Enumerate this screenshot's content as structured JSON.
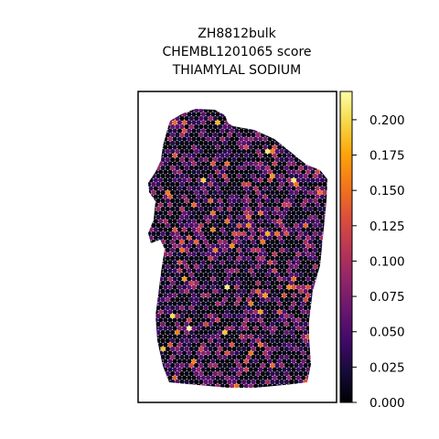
{
  "chart_data": {
    "type": "scatter",
    "title_lines": [
      "ZH8812bulk",
      "CHEMBL1201065 score",
      "THIAMYLAL SODIUM"
    ],
    "colormap": "inferno",
    "colorbar": {
      "range": [
        0.0,
        0.22
      ],
      "ticks": [
        0.0,
        0.025,
        0.05,
        0.075,
        0.1,
        0.125,
        0.15,
        0.175,
        0.2
      ],
      "tick_labels": [
        "0.000",
        "0.025",
        "0.050",
        "0.075",
        "0.100",
        "0.125",
        "0.150",
        "0.175",
        "0.200"
      ]
    },
    "axes_visible": false,
    "point_color_min": "#000004",
    "point_color_max": "#fcffa4"
  }
}
